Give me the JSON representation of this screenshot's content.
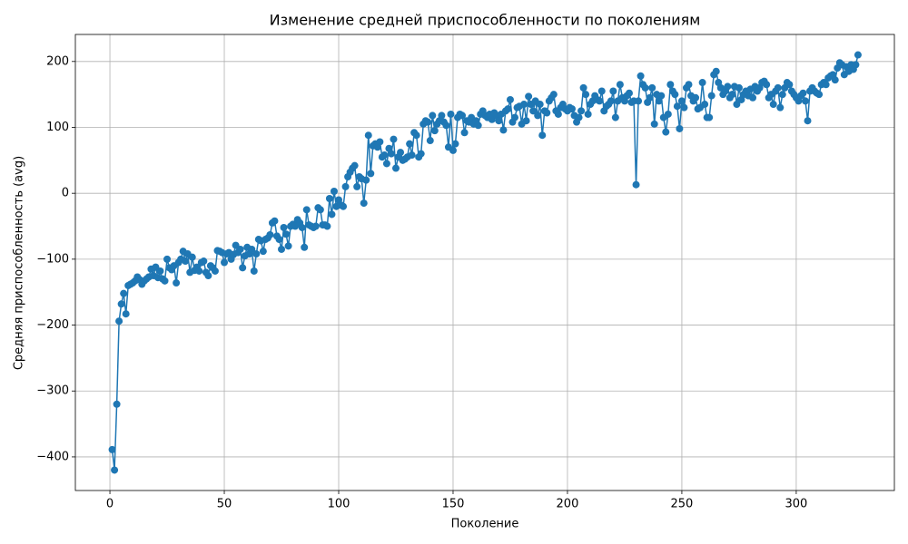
{
  "chart_data": {
    "type": "line",
    "title": "Изменение средней приспособленности по поколениям",
    "xlabel": "Поколение",
    "ylabel": "Средняя приспособленность (avg)",
    "color": "#1f77b4",
    "grid": true,
    "xlim": [
      -15.1,
      342.9
    ],
    "ylim": [
      -451,
      241
    ],
    "xticks": [
      0,
      50,
      100,
      150,
      200,
      250,
      300
    ],
    "yticks": [
      {
        "value": -400,
        "label": "−400"
      },
      {
        "value": -300,
        "label": "−300"
      },
      {
        "value": -200,
        "label": "−200"
      },
      {
        "value": -100,
        "label": "−100"
      },
      0,
      100,
      200
    ],
    "x": [
      1,
      2,
      3,
      4,
      5,
      6,
      7,
      8,
      9,
      10,
      11,
      12,
      13,
      14,
      15,
      16,
      17,
      18,
      19,
      20,
      21,
      22,
      23,
      24,
      25,
      26,
      27,
      28,
      29,
      30,
      31,
      32,
      33,
      34,
      35,
      36,
      37,
      38,
      39,
      40,
      41,
      42,
      43,
      44,
      45,
      46,
      47,
      48,
      49,
      50,
      51,
      52,
      53,
      54,
      55,
      56,
      57,
      58,
      59,
      60,
      61,
      62,
      63,
      64,
      65,
      66,
      67,
      68,
      69,
      70,
      71,
      72,
      73,
      74,
      75,
      76,
      77,
      78,
      79,
      80,
      81,
      82,
      83,
      84,
      85,
      86,
      87,
      88,
      89,
      90,
      91,
      92,
      93,
      94,
      95,
      96,
      97,
      98,
      99,
      100,
      101,
      102,
      103,
      104,
      105,
      106,
      107,
      108,
      109,
      110,
      111,
      112,
      113,
      114,
      115,
      116,
      117,
      118,
      119,
      120,
      121,
      122,
      123,
      124,
      125,
      126,
      127,
      128,
      129,
      130,
      131,
      132,
      133,
      134,
      135,
      136,
      137,
      138,
      139,
      140,
      141,
      142,
      143,
      144,
      145,
      146,
      147,
      148,
      149,
      150,
      151,
      152,
      153,
      154,
      155,
      156,
      157,
      158,
      159,
      160,
      161,
      162,
      163,
      164,
      165,
      166,
      167,
      168,
      169,
      170,
      171,
      172,
      173,
      174,
      175,
      176,
      177,
      178,
      179,
      180,
      181,
      182,
      183,
      184,
      185,
      186,
      187,
      188,
      189,
      190,
      191,
      192,
      193,
      194,
      195,
      196,
      197,
      198,
      199,
      200,
      201,
      202,
      203,
      204,
      205,
      206,
      207,
      208,
      209,
      210,
      211,
      212,
      213,
      214,
      215,
      216,
      217,
      218,
      219,
      220,
      221,
      222,
      223,
      224,
      225,
      226,
      227,
      228,
      229,
      230,
      231,
      232,
      233,
      234,
      235,
      236,
      237,
      238,
      239,
      240,
      241,
      242,
      243,
      244,
      245,
      246,
      247,
      248,
      249,
      250,
      251,
      252,
      253,
      254,
      255,
      256,
      257,
      258,
      259,
      260,
      261,
      262,
      263,
      264,
      265,
      266,
      267,
      268,
      269,
      270,
      271,
      272,
      273,
      274,
      275,
      276,
      277,
      278,
      279,
      280,
      281,
      282,
      283,
      284,
      285,
      286,
      287,
      288,
      289,
      290,
      291,
      292,
      293,
      294,
      295,
      296,
      297,
      298,
      299,
      300,
      301,
      302,
      303,
      304,
      305,
      306,
      307,
      308,
      309,
      310,
      311,
      312,
      313,
      314,
      315,
      316,
      317,
      318,
      319,
      320,
      321,
      322,
      323,
      324,
      325,
      326,
      327
    ],
    "values": [
      -389,
      -420,
      -320,
      -194,
      -168,
      -152,
      -183,
      -140,
      -138,
      -136,
      -133,
      -127,
      -131,
      -138,
      -133,
      -130,
      -127,
      -115,
      -125,
      -112,
      -128,
      -118,
      -130,
      -133,
      -100,
      -113,
      -116,
      -110,
      -136,
      -105,
      -100,
      -88,
      -103,
      -92,
      -120,
      -97,
      -117,
      -112,
      -118,
      -105,
      -103,
      -120,
      -125,
      -110,
      -113,
      -118,
      -87,
      -88,
      -90,
      -105,
      -92,
      -90,
      -100,
      -93,
      -79,
      -90,
      -85,
      -113,
      -95,
      -82,
      -92,
      -85,
      -118,
      -92,
      -70,
      -72,
      -88,
      -70,
      -68,
      -63,
      -45,
      -42,
      -65,
      -70,
      -85,
      -52,
      -62,
      -80,
      -50,
      -47,
      -50,
      -40,
      -45,
      -52,
      -82,
      -25,
      -48,
      -50,
      -52,
      -50,
      -22,
      -25,
      -48,
      -48,
      -50,
      -8,
      -32,
      3,
      -20,
      -10,
      -18,
      -20,
      10,
      25,
      32,
      38,
      42,
      10,
      25,
      22,
      -15,
      20,
      88,
      30,
      72,
      75,
      70,
      78,
      55,
      58,
      45,
      68,
      60,
      82,
      38,
      55,
      62,
      50,
      52,
      55,
      75,
      58,
      92,
      88,
      55,
      60,
      105,
      110,
      108,
      80,
      118,
      95,
      105,
      110,
      118,
      108,
      103,
      70,
      120,
      65,
      75,
      115,
      120,
      118,
      92,
      110,
      108,
      115,
      105,
      110,
      103,
      120,
      125,
      118,
      115,
      120,
      112,
      122,
      118,
      110,
      120,
      96,
      125,
      128,
      142,
      108,
      115,
      130,
      132,
      105,
      135,
      110,
      147,
      135,
      125,
      140,
      118,
      135,
      88,
      125,
      122,
      140,
      145,
      150,
      125,
      120,
      130,
      135,
      128,
      125,
      130,
      128,
      118,
      108,
      115,
      125,
      160,
      150,
      120,
      135,
      140,
      148,
      142,
      140,
      155,
      125,
      132,
      135,
      140,
      155,
      115,
      140,
      165,
      145,
      140,
      148,
      152,
      138,
      140,
      13,
      140,
      178,
      165,
      160,
      138,
      145,
      160,
      105,
      150,
      140,
      148,
      115,
      93,
      120,
      165,
      155,
      150,
      132,
      98,
      140,
      130,
      160,
      165,
      148,
      140,
      145,
      128,
      130,
      168,
      135,
      115,
      115,
      148,
      180,
      185,
      168,
      160,
      150,
      155,
      162,
      145,
      150,
      162,
      135,
      160,
      142,
      150,
      155,
      148,
      158,
      145,
      162,
      155,
      160,
      168,
      170,
      165,
      145,
      150,
      135,
      155,
      160,
      130,
      150,
      160,
      168,
      165,
      155,
      150,
      145,
      140,
      148,
      152,
      140,
      110,
      155,
      160,
      155,
      152,
      150,
      165,
      168,
      165,
      175,
      178,
      180,
      172,
      190,
      198,
      195,
      180,
      192,
      185,
      195,
      188,
      195,
      210
    ]
  }
}
